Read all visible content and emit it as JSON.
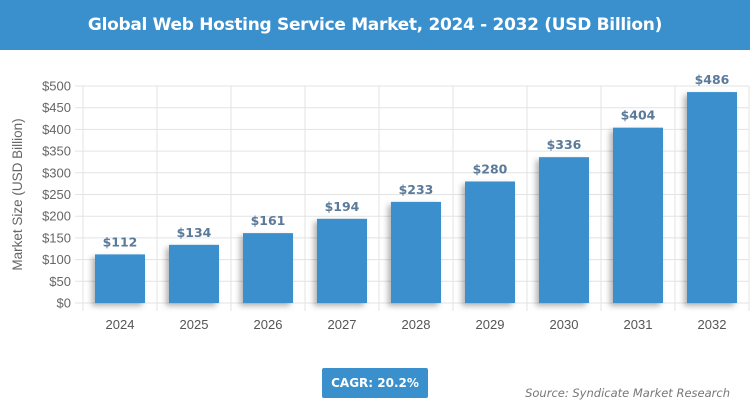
{
  "title": "Global Web Hosting Service Market, 2024 - 2032 (USD Billion)",
  "cagr_label": "CAGR: 20.2%",
  "source": "Source: Syndicate Market Research",
  "colors": {
    "bar": "#3a8fcd",
    "header": "#3a8fcd",
    "data_label": "#5a7a9a"
  },
  "chart_data": {
    "type": "bar",
    "title": "Global Web Hosting Service Market, 2024 - 2032 (USD Billion)",
    "xlabel": "",
    "ylabel": "Market Size (USD Billion)",
    "categories": [
      "2024",
      "2025",
      "2026",
      "2027",
      "2028",
      "2029",
      "2030",
      "2031",
      "2032"
    ],
    "values": [
      112,
      134,
      161,
      194,
      233,
      280,
      336,
      404,
      486
    ],
    "data_labels": [
      "$112",
      "$134",
      "$161",
      "$194",
      "$233",
      "$280",
      "$336",
      "$404",
      "$486"
    ],
    "ylim": [
      0,
      500
    ],
    "yticks": [
      "$0",
      "$50",
      "$100",
      "$150",
      "$200",
      "$250",
      "$300",
      "$350",
      "$400",
      "$450",
      "$500"
    ],
    "grid": true,
    "legend": "none"
  }
}
